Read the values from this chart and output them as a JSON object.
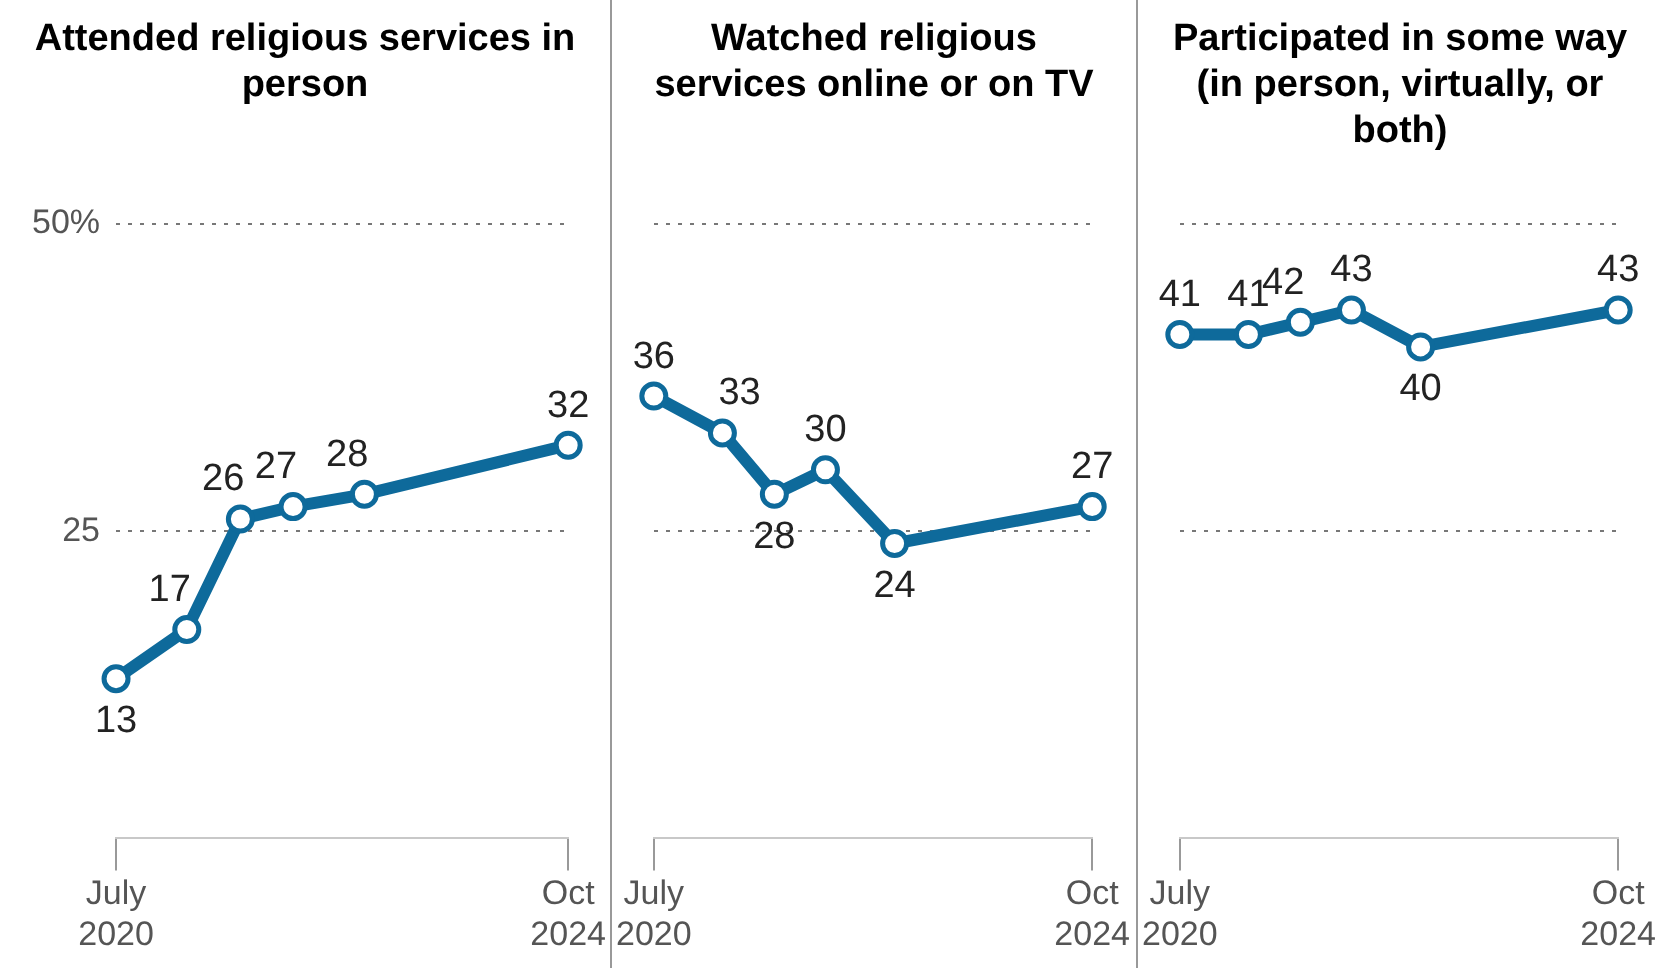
{
  "chart_data": [
    {
      "type": "line",
      "title": "Attended religious services in person",
      "x": [
        "2020-07",
        "2021-03",
        "2021-09",
        "2022-03",
        "2022-11",
        "2024-10"
      ],
      "series": [
        {
          "color": "#0e6a9b",
          "values": [
            13,
            17,
            26,
            27,
            28,
            32
          ]
        }
      ],
      "xlim": [
        "2020-07",
        "2024-10"
      ],
      "xticks": [
        {
          "value": "2020-07",
          "label": "July\n2020"
        },
        {
          "value": "2024-10",
          "label": "Oct\n2024"
        }
      ],
      "ylim": [
        0,
        50
      ],
      "yticks": [
        {
          "value": 25,
          "label": "25"
        },
        {
          "value": 50,
          "label": "50%"
        }
      ],
      "grid": "y",
      "marker": "circle",
      "data_labels": true,
      "legend": false
    },
    {
      "type": "line",
      "title": "Watched religious services online or on TV",
      "x": [
        "2020-07",
        "2021-03",
        "2021-09",
        "2022-03",
        "2022-11",
        "2024-10"
      ],
      "series": [
        {
          "color": "#0e6a9b",
          "values": [
            36,
            33,
            28,
            30,
            24,
            27
          ]
        }
      ],
      "xlim": [
        "2020-07",
        "2024-10"
      ],
      "xticks": [
        {
          "value": "2020-07",
          "label": "July\n2020"
        },
        {
          "value": "2024-10",
          "label": "Oct\n2024"
        }
      ],
      "ylim": [
        0,
        50
      ],
      "tick_labels": "x",
      "grid": "y",
      "marker": "circle",
      "data_labels": true,
      "legend": false
    },
    {
      "type": "line",
      "title": "Participated in some way (in person, virtually, or both)",
      "x": [
        "2020-07",
        "2021-03",
        "2021-09",
        "2022-03",
        "2022-11",
        "2024-10"
      ],
      "series": [
        {
          "color": "#0e6a9b",
          "values": [
            41,
            41,
            42,
            43,
            40,
            43
          ]
        }
      ],
      "xlim": [
        "2020-07",
        "2024-10"
      ],
      "xticks": [
        {
          "value": "2020-07",
          "label": "July\n2020"
        },
        {
          "value": "2024-10",
          "label": "Oct\n2024"
        }
      ],
      "ylim": [
        0,
        50
      ],
      "tick_labels": "x",
      "grid": "y",
      "marker": "circle",
      "data_labels": true,
      "legend": false
    }
  ]
}
